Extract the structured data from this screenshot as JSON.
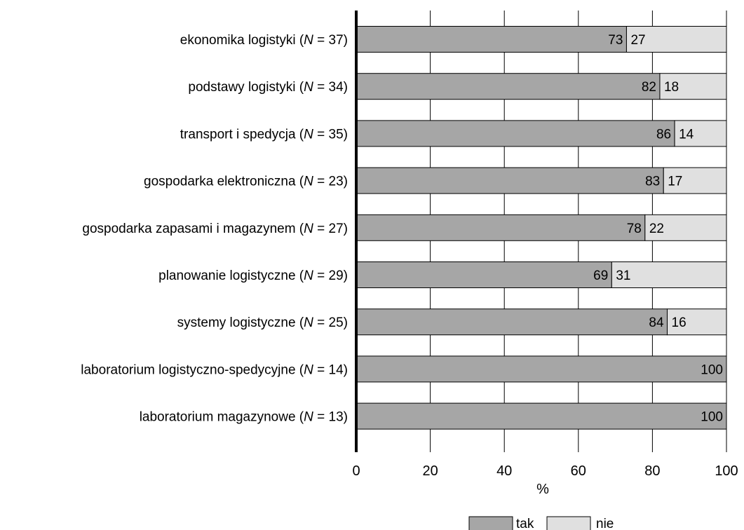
{
  "chart_data": {
    "type": "bar",
    "orientation": "horizontal",
    "stacked": true,
    "categories": [
      {
        "text": "ekonomika logistyki",
        "n": "37"
      },
      {
        "text": "podstawy logistyki",
        "n": "34"
      },
      {
        "text": "transport i spedycja",
        "n": "35"
      },
      {
        "text": "gospodarka elektroniczna",
        "n": "23"
      },
      {
        "text": "gospodarka zapasami i magazynem",
        "n": "27"
      },
      {
        "text": "planowanie logistyczne",
        "n": "29"
      },
      {
        "text": "systemy logistyczne",
        "n": "25"
      },
      {
        "text": "laboratorium logistyczno-spedycyjne",
        "n": "14"
      },
      {
        "text": "laboratorium magazynowe",
        "n": "13"
      }
    ],
    "series": [
      {
        "name": "tak",
        "color": "#a6a6a6",
        "values": [
          73,
          82,
          86,
          83,
          78,
          69,
          84,
          100,
          100
        ]
      },
      {
        "name": "nie",
        "color": "#e0e0e0",
        "values": [
          27,
          18,
          14,
          17,
          22,
          31,
          16,
          0,
          0
        ]
      }
    ],
    "xlabel": "%",
    "xlim": [
      0,
      100
    ],
    "xticks": [
      0,
      20,
      40,
      60,
      80,
      100
    ],
    "grid": true,
    "legend": "bottom-right"
  }
}
